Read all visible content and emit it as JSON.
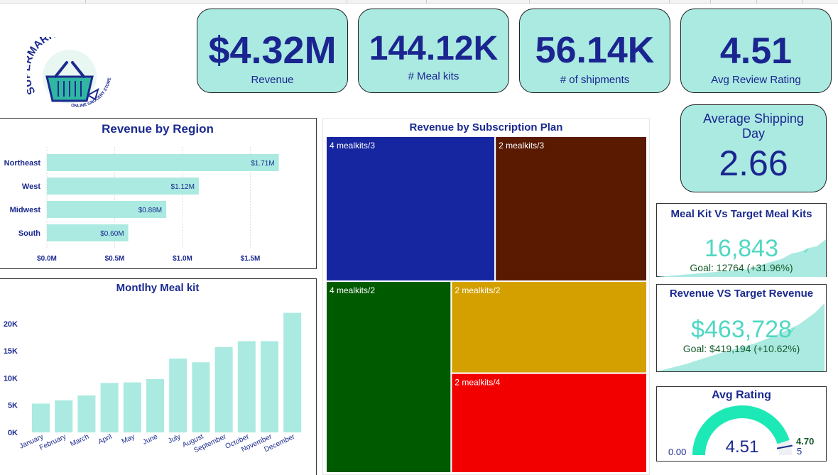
{
  "kpis": {
    "revenue": {
      "value": "$4.32M",
      "label": "Revenue"
    },
    "meal_kits": {
      "value": "144.12K",
      "label": "# Meal kits"
    },
    "shipments": {
      "value": "56.14K",
      "label": "# of shipments"
    },
    "avg_review": {
      "value": "4.51",
      "label": "Avg Review Rating"
    },
    "avg_shipping": {
      "label": "Average Shipping Day",
      "value": "2.66"
    }
  },
  "logo": {
    "brand": "SUPERMARKET",
    "tagline": "ONLINE GROCERY STORE"
  },
  "target_cards": {
    "meal_kit": {
      "title": "Meal Kit Vs Target Meal Kits",
      "value": "16,843",
      "goal": "Goal: 12764 (+31.96%)"
    },
    "revenue": {
      "title": "Revenue VS Target Revenue",
      "value": "$463,728",
      "goal": "Goal: $419,194 (+10.62%)"
    }
  },
  "gauge": {
    "title": "Avg Rating",
    "value": 4.51,
    "value_label": "4.51",
    "min": 0,
    "min_label": "0.00",
    "max": 5,
    "max_label": "5",
    "target": 4.7,
    "target_label": "4.70",
    "fill_color": "#1de9b6"
  },
  "chart_data": [
    {
      "type": "bar",
      "orientation": "horizontal",
      "title": "Revenue by Region",
      "categories": [
        "Northeast",
        "West",
        "Midwest",
        "South"
      ],
      "values": [
        1.71,
        1.12,
        0.88,
        0.6
      ],
      "data_labels": [
        "$1.71M",
        "$1.12M",
        "$0.88M",
        "$0.60M"
      ],
      "xlim": [
        0,
        2.0
      ],
      "xticks": [
        0,
        0.5,
        1.0,
        1.5
      ],
      "xtick_labels": [
        "$0.0M",
        "$0.5M",
        "$1.0M",
        "$1.5M"
      ],
      "grid": true,
      "color": "#aaeae1"
    },
    {
      "type": "bar",
      "title": "Montlhy Meal kit",
      "categories": [
        "January",
        "February",
        "March",
        "April",
        "May",
        "June",
        "July",
        "August",
        "September",
        "October",
        "November",
        "December"
      ],
      "values": [
        5300,
        5900,
        6800,
        9100,
        9200,
        9800,
        13600,
        12900,
        15700,
        16800,
        16800,
        22000
      ],
      "ylim": [
        0,
        23000
      ],
      "yticks": [
        0,
        5000,
        10000,
        15000,
        20000
      ],
      "ytick_labels": [
        "0K",
        "5K",
        "10K",
        "15K",
        "20K"
      ],
      "grid": false,
      "color": "#aaeae1"
    },
    {
      "type": "treemap",
      "title": "Revenue by Subscription Plan",
      "labels": [
        "4 mealkits/3",
        "2 mealkits/3",
        "4 mealkits/2",
        "2 mealkits/2",
        "2 mealkits/4"
      ],
      "values": [
        0.98,
        0.88,
        0.96,
        0.72,
        0.78
      ],
      "colors": [
        "#1526a0",
        "#5a1a02",
        "#005a00",
        "#d4a000",
        "#f20000"
      ]
    }
  ]
}
